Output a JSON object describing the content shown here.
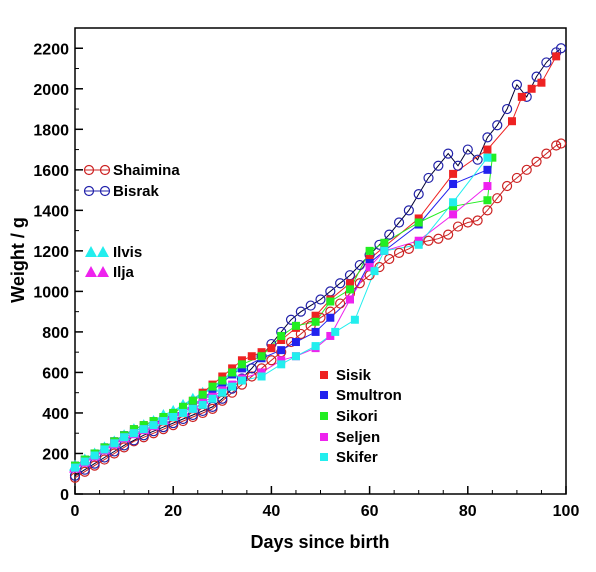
{
  "chart_data": {
    "type": "scatter",
    "xlabel": "Days since birth",
    "ylabel": "Weight / g",
    "xlim": [
      0,
      100
    ],
    "ylim": [
      0,
      2300
    ],
    "xticks": [
      0,
      20,
      40,
      60,
      80,
      100
    ],
    "yticks": [
      0,
      200,
      400,
      600,
      800,
      1000,
      1200,
      1400,
      1600,
      1800,
      2000,
      2200
    ],
    "grid": false,
    "series": [
      {
        "name": "Shaimina",
        "marker": "circle-open",
        "color": "#cc2222",
        "x": [
          0,
          2,
          4,
          6,
          8,
          10,
          12,
          14,
          16,
          18,
          20,
          22,
          24,
          26,
          28,
          30,
          32,
          34,
          36,
          38,
          40,
          42,
          44,
          46,
          48,
          50,
          52,
          54,
          56,
          58,
          60,
          62,
          64,
          66,
          68,
          70,
          72,
          74,
          76,
          78,
          80,
          82,
          84,
          86,
          88,
          90,
          92,
          94,
          96,
          98,
          99
        ],
        "y": [
          80,
          110,
          140,
          170,
          200,
          230,
          260,
          280,
          300,
          320,
          340,
          360,
          380,
          400,
          420,
          460,
          500,
          540,
          580,
          620,
          660,
          700,
          750,
          790,
          830,
          870,
          900,
          940,
          990,
          1040,
          1080,
          1120,
          1160,
          1190,
          1210,
          1240,
          1250,
          1260,
          1280,
          1320,
          1340,
          1350,
          1400,
          1460,
          1520,
          1560,
          1600,
          1640,
          1680,
          1720,
          1730
        ]
      },
      {
        "name": "Bisrak",
        "marker": "circle-open",
        "color": "#2222aa",
        "x": [
          0,
          2,
          4,
          6,
          8,
          10,
          12,
          14,
          16,
          18,
          20,
          22,
          24,
          26,
          28,
          30,
          32,
          34,
          36,
          38,
          40,
          42,
          44,
          46,
          48,
          50,
          52,
          54,
          56,
          58,
          60,
          62,
          64,
          66,
          68,
          70,
          72,
          74,
          76,
          78,
          80,
          82,
          84,
          86,
          88,
          90,
          92,
          94,
          96,
          98,
          99
        ],
        "y": [
          90,
          120,
          150,
          180,
          210,
          240,
          265,
          290,
          310,
          330,
          350,
          370,
          390,
          410,
          430,
          470,
          520,
          570,
          620,
          680,
          740,
          800,
          860,
          900,
          930,
          960,
          1000,
          1040,
          1080,
          1130,
          1180,
          1230,
          1280,
          1340,
          1400,
          1480,
          1560,
          1620,
          1680,
          1620,
          1700,
          1650,
          1760,
          1820,
          1900,
          2020,
          1960,
          2060,
          2130,
          2180,
          2200
        ]
      },
      {
        "name": "Ilvis",
        "marker": "triangle",
        "color": "#22eeee",
        "x": [
          0,
          2,
          4,
          6,
          8,
          10,
          12,
          14,
          16,
          18,
          20,
          22,
          24,
          26,
          28,
          30,
          32,
          34
        ],
        "y": [
          140,
          170,
          200,
          230,
          260,
          290,
          320,
          340,
          360,
          390,
          410,
          440,
          470,
          500,
          530,
          560,
          600,
          630
        ]
      },
      {
        "name": "Ilja",
        "marker": "triangle",
        "color": "#ee22ee",
        "x": [
          0,
          2,
          4,
          6,
          8,
          10,
          12,
          14,
          16,
          18,
          20,
          22,
          24,
          26,
          28
        ],
        "y": [
          130,
          160,
          190,
          220,
          250,
          280,
          300,
          320,
          340,
          370,
          390,
          410,
          440,
          470,
          500
        ]
      },
      {
        "name": "Sisik",
        "marker": "square",
        "color": "#ee2222",
        "x": [
          0,
          2,
          4,
          6,
          8,
          10,
          12,
          14,
          16,
          18,
          20,
          22,
          24,
          26,
          28,
          30,
          32,
          34,
          36,
          38,
          40,
          42,
          45,
          49,
          52,
          56,
          60,
          63,
          70,
          77,
          84,
          89,
          91,
          93,
          95,
          98
        ],
        "y": [
          140,
          170,
          200,
          230,
          260,
          290,
          320,
          340,
          360,
          380,
          400,
          430,
          460,
          500,
          540,
          580,
          620,
          660,
          680,
          700,
          720,
          760,
          820,
          880,
          960,
          1040,
          1160,
          1220,
          1360,
          1580,
          1700,
          1840,
          1960,
          2000,
          2030,
          2160
        ]
      },
      {
        "name": "Smultron",
        "marker": "square",
        "color": "#2222ee",
        "x": [
          0,
          2,
          4,
          6,
          8,
          10,
          12,
          14,
          16,
          18,
          20,
          22,
          24,
          26,
          28,
          30,
          32,
          34,
          38,
          42,
          45,
          49,
          52,
          56,
          60,
          63,
          70,
          77,
          84
        ],
        "y": [
          140,
          170,
          200,
          230,
          260,
          290,
          310,
          330,
          350,
          370,
          390,
          410,
          440,
          470,
          510,
          550,
          590,
          620,
          670,
          710,
          750,
          800,
          870,
          960,
          1140,
          1200,
          1330,
          1530,
          1600
        ]
      },
      {
        "name": "Sikori",
        "marker": "square",
        "color": "#22ee22",
        "x": [
          0,
          2,
          4,
          6,
          8,
          10,
          12,
          14,
          16,
          18,
          20,
          22,
          24,
          26,
          28,
          30,
          32,
          34,
          38,
          42,
          45,
          49,
          52,
          56,
          60,
          63,
          70,
          77,
          84,
          85
        ],
        "y": [
          140,
          170,
          200,
          230,
          260,
          290,
          320,
          340,
          360,
          380,
          400,
          430,
          460,
          490,
          530,
          560,
          600,
          640,
          680,
          780,
          830,
          850,
          950,
          1010,
          1200,
          1240,
          1340,
          1420,
          1450,
          1660
        ]
      },
      {
        "name": "Seljen",
        "marker": "square",
        "color": "#ee22ee",
        "x": [
          0,
          2,
          4,
          6,
          8,
          10,
          12,
          14,
          16,
          18,
          20,
          22,
          24,
          26,
          28,
          30,
          32,
          34,
          38,
          42,
          45,
          49,
          52,
          56,
          60,
          63,
          70,
          77,
          84
        ],
        "y": [
          130,
          160,
          190,
          220,
          250,
          280,
          300,
          320,
          340,
          360,
          380,
          400,
          420,
          450,
          480,
          510,
          540,
          570,
          600,
          660,
          680,
          720,
          780,
          960,
          1120,
          1200,
          1250,
          1380,
          1520
        ]
      },
      {
        "name": "Skifer",
        "marker": "square",
        "color": "#22eeee",
        "x": [
          0,
          2,
          4,
          6,
          8,
          10,
          12,
          14,
          16,
          18,
          20,
          22,
          24,
          26,
          28,
          30,
          32,
          34,
          38,
          42,
          45,
          49,
          53,
          57,
          61,
          63,
          70,
          77,
          84
        ],
        "y": [
          130,
          160,
          190,
          220,
          250,
          280,
          300,
          320,
          340,
          360,
          380,
          400,
          420,
          440,
          470,
          500,
          530,
          560,
          580,
          640,
          680,
          730,
          800,
          860,
          1100,
          1200,
          1230,
          1440,
          1660
        ]
      }
    ]
  }
}
